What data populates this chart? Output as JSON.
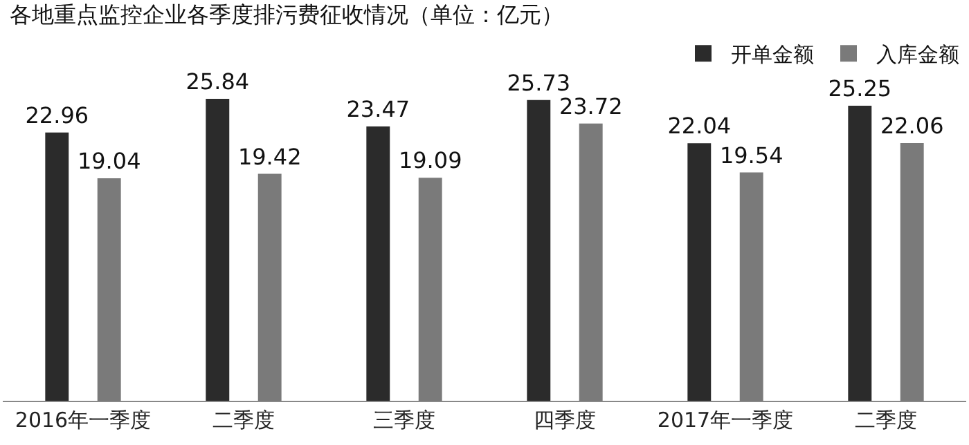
{
  "chart_data": {
    "type": "bar",
    "title": "各地重点监控企业各季度排污费征收情况（单位：亿元）",
    "categories": [
      "2016年一季度",
      "二季度",
      "三季度",
      "四季度",
      "2017年一季度",
      "二季度"
    ],
    "series": [
      {
        "name": "开单金额",
        "color": "#2b2b2b",
        "values": [
          22.96,
          25.84,
          23.47,
          25.73,
          22.04,
          25.25
        ]
      },
      {
        "name": "入库金额",
        "color": "#7a7a7a",
        "values": [
          19.04,
          19.42,
          19.09,
          23.72,
          19.54,
          22.06
        ]
      }
    ],
    "legend": "top right",
    "data_labels": true,
    "tick_labels": "x"
  }
}
